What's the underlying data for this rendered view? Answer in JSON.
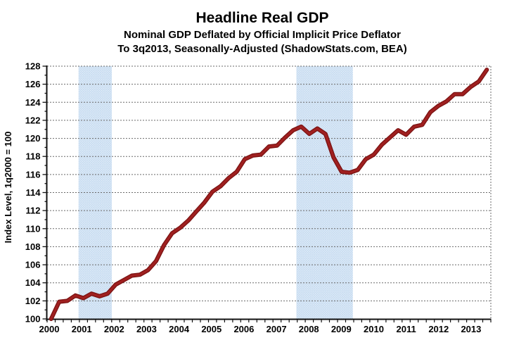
{
  "title": "Headline Real GDP",
  "subtitle1": "Nominal GDP Deflated by Official Implicit Price Deflator",
  "subtitle2": "To 3q2013, Seasonally-Adjusted (ShadowStats.com, BEA)",
  "chart_data": {
    "type": "line",
    "title": "Headline Real GDP",
    "xlabel": "",
    "ylabel": "Index Level, 1q2000 = 100",
    "ylim": [
      100,
      128
    ],
    "ytick_step": 2,
    "x_tick_labels": [
      "2000",
      "2001",
      "2002",
      "2003",
      "2004",
      "2005",
      "2006",
      "2007",
      "2008",
      "2009",
      "2010",
      "2011",
      "2012",
      "2013"
    ],
    "start_period": "1q2000",
    "end_period": "3q2013",
    "frequency": "quarterly",
    "grid": true,
    "legend": "none",
    "series": [
      {
        "name": "Headline Real GDP index (1q2000 = 100)",
        "values": [
          100.0,
          101.9,
          102.0,
          102.6,
          102.3,
          102.8,
          102.5,
          102.8,
          103.8,
          104.3,
          104.8,
          104.9,
          105.4,
          106.4,
          108.2,
          109.5,
          110.1,
          110.9,
          111.9,
          112.9,
          114.1,
          114.7,
          115.6,
          116.3,
          117.7,
          118.1,
          118.2,
          119.1,
          119.2,
          120.1,
          120.9,
          121.3,
          120.5,
          121.1,
          120.5,
          117.9,
          116.3,
          116.2,
          116.5,
          117.7,
          118.2,
          119.3,
          120.1,
          120.9,
          120.4,
          121.3,
          121.5,
          122.9,
          123.6,
          124.1,
          124.9,
          124.9,
          125.7,
          126.3,
          127.6
        ]
      }
    ],
    "recession_bands": [
      {
        "from_year": 2000.85,
        "to_year": 2001.88
      },
      {
        "from_year": 2007.6,
        "to_year": 2009.35
      }
    ],
    "colors": {
      "line": "#a02020",
      "line_edge": "#7a1212",
      "recession_band": "#c9ddf1",
      "recession_band_dots": "#ebf3fb",
      "gridline": "#6a6a6a",
      "axis": "#111111",
      "text": "#000000",
      "background": "#ffffff"
    }
  }
}
